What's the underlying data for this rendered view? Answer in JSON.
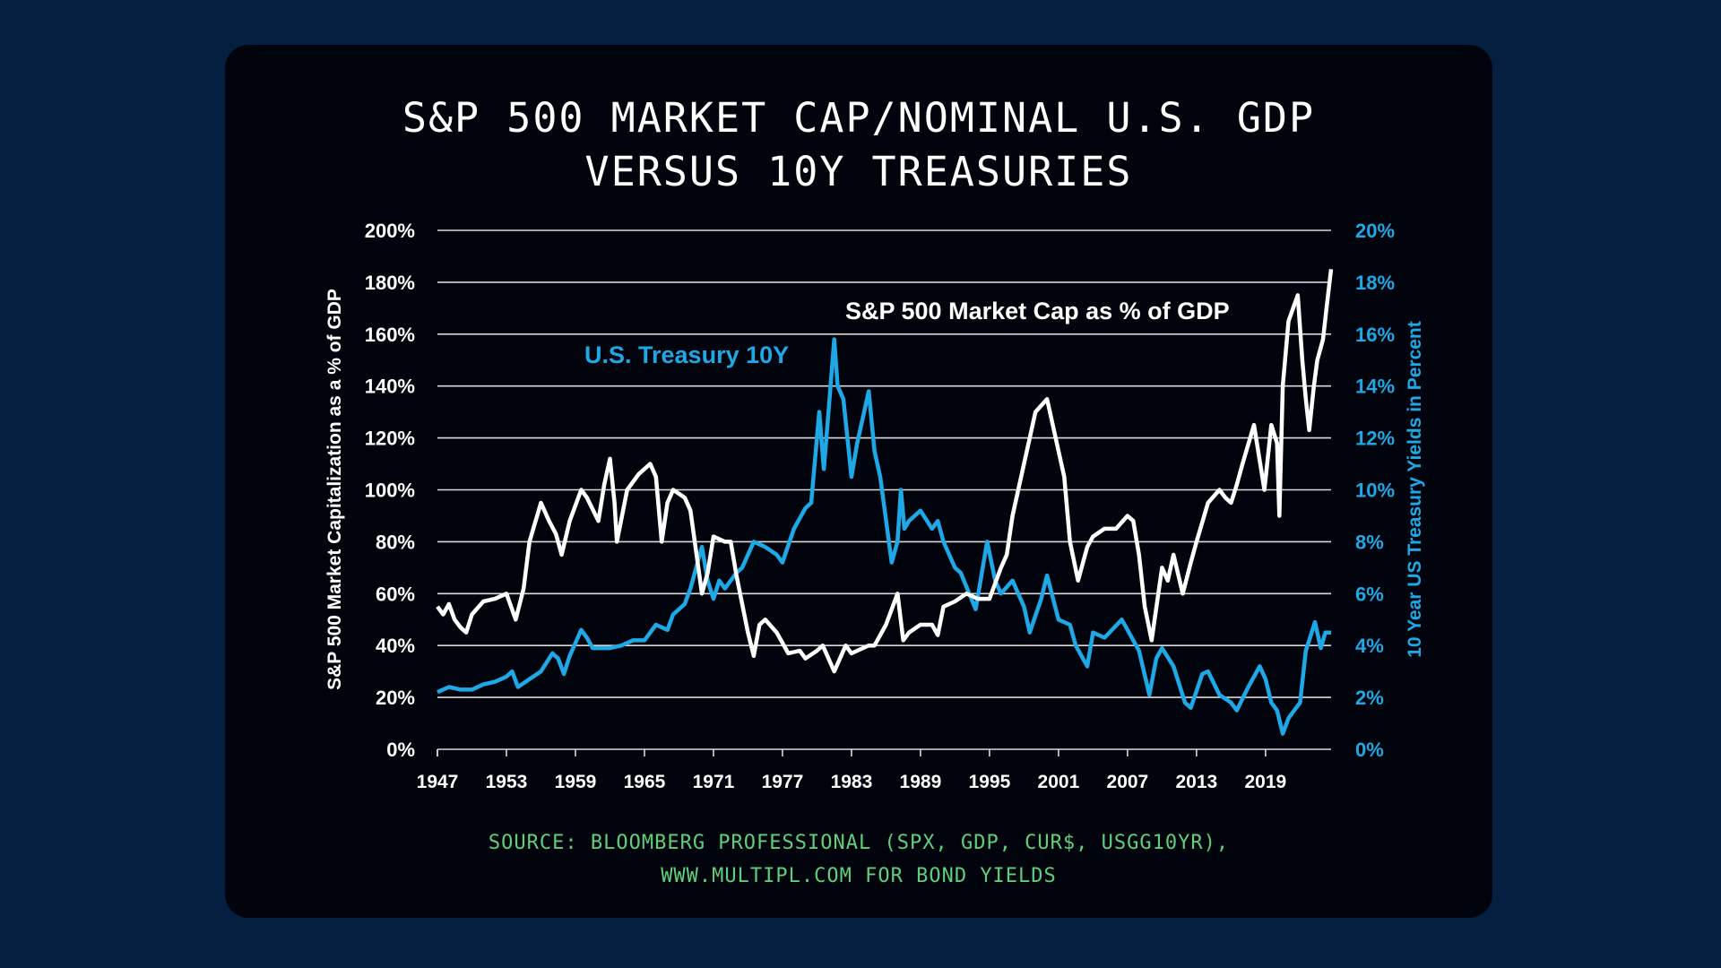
{
  "title_lines": [
    "S&P 500 MARKET CAP/NOMINAL U.S. GDP",
    "VERSUS 10Y TREASURIES"
  ],
  "source_lines": [
    "SOURCE: BLOOMBERG PROFESSIONAL (SPX, GDP, CUR$, USGG10YR),",
    "WWW.MULTIPL.COM FOR BOND YIELDS"
  ],
  "colors": {
    "background": "#041f40",
    "card": "#02040d",
    "market_cap_line": "#ffffff",
    "treasury_line": "#1ea8e6",
    "gridline": "#d9d9d9",
    "source_text": "#5fd07a"
  },
  "chart_data": {
    "type": "line",
    "title": "S&P 500 Market Cap/Nominal U.S. GDP versus 10Y Treasuries",
    "xlabel": "",
    "ylabel": "S&P 500 Market Capitalization as a % of GDP",
    "y2label": "10 Year US Treasury Yields in Percent",
    "xlim": [
      1947,
      2024.7
    ],
    "ylim": [
      0,
      200
    ],
    "y2lim": [
      0,
      20
    ],
    "grid": true,
    "x_ticks": [
      1947,
      1953,
      1959,
      1965,
      1971,
      1977,
      1983,
      1989,
      1995,
      2001,
      2007,
      2013,
      2019
    ],
    "x_tick_labels": [
      "1947",
      "1953",
      "1959",
      "1965",
      "1971",
      "1977",
      "1983",
      "1989",
      "1995",
      "2001",
      "2007",
      "2013",
      "2019"
    ],
    "y_ticks": [
      0,
      20,
      40,
      60,
      80,
      100,
      120,
      140,
      160,
      180,
      200
    ],
    "y_tick_labels": [
      "0%",
      "20%",
      "40%",
      "60%",
      "80%",
      "100%",
      "120%",
      "140%",
      "160%",
      "180%",
      "200%"
    ],
    "y2_ticks": [
      0,
      2,
      4,
      6,
      8,
      10,
      12,
      14,
      16,
      18,
      20
    ],
    "y2_tick_labels": [
      "0%",
      "2%",
      "4%",
      "6%",
      "8%",
      "10%",
      "12%",
      "14%",
      "16%",
      "18%",
      "20%"
    ],
    "annotations": [
      {
        "text": "S&P 500 Market Cap as % of GDP",
        "series": 0
      },
      {
        "text": "U.S. Treasury 10Y",
        "series": 1
      }
    ],
    "series": [
      {
        "name": "S&P 500 Market Cap as % of GDP",
        "axis": "left",
        "x": [
          1947,
          1947.5,
          1948,
          1948.5,
          1949,
          1949.5,
          1950,
          1951,
          1952,
          1953,
          1953.8,
          1954.5,
          1955,
          1956,
          1956.7,
          1957.3,
          1957.8,
          1958.5,
          1959.5,
          1960,
          1961,
          1961.5,
          1962,
          1962.4,
          1962.6,
          1963.5,
          1964.5,
          1965.5,
          1966,
          1966.5,
          1967,
          1967.5,
          1968.5,
          1969,
          1970,
          1970.5,
          1971,
          1972,
          1972.5,
          1973,
          1974,
          1974.5,
          1975,
          1975.5,
          1976.5,
          1977.5,
          1978.5,
          1979,
          1980,
          1980.5,
          1981.5,
          1982.5,
          1983,
          1983.5,
          1984.5,
          1985,
          1986,
          1987,
          1987.5,
          1988,
          1989,
          1990,
          1990.5,
          1991,
          1992,
          1993,
          1994,
          1995,
          1996,
          1996.5,
          1997,
          1998,
          1998.5,
          1999,
          2000,
          2000.5,
          2001,
          2001.5,
          2002,
          2002.7,
          2003.5,
          2004,
          2005,
          2006,
          2007,
          2007.5,
          2008,
          2008.5,
          2009.1,
          2010,
          2010.5,
          2011,
          2011.8,
          2012.5,
          2013,
          2014,
          2015,
          2015.5,
          2016,
          2016.5,
          2017,
          2018,
          2018.9,
          2019.5,
          2020,
          2020.2,
          2020.5,
          2021,
          2021.8,
          2022.2,
          2022.5,
          2022.8,
          2023.2,
          2023.5,
          2024,
          2024.3,
          2024.7
        ],
        "values": [
          55,
          52,
          56,
          50,
          47,
          45,
          52,
          57,
          58,
          60,
          50,
          62,
          80,
          95,
          88,
          83,
          75,
          88,
          100,
          97,
          88,
          102,
          112,
          95,
          80,
          100,
          106,
          110,
          105,
          80,
          95,
          100,
          97,
          92,
          60,
          68,
          82,
          80,
          80,
          67,
          45,
          36,
          48,
          50,
          45,
          37,
          38,
          35,
          38,
          40,
          30,
          40,
          37,
          38,
          40,
          40,
          48,
          60,
          42,
          45,
          48,
          48,
          44,
          55,
          57,
          60,
          58,
          58,
          70,
          75,
          90,
          110,
          120,
          130,
          135,
          125,
          115,
          105,
          80,
          65,
          78,
          82,
          85,
          85,
          90,
          88,
          75,
          55,
          42,
          70,
          65,
          75,
          60,
          72,
          80,
          95,
          100,
          97,
          95,
          102,
          110,
          125,
          100,
          125,
          118,
          90,
          140,
          165,
          175,
          150,
          135,
          123,
          140,
          150,
          158,
          170,
          185
        ]
      },
      {
        "name": "U.S. Treasury 10Y",
        "axis": "right",
        "x": [
          1947,
          1948,
          1949,
          1950,
          1951,
          1952,
          1953,
          1953.5,
          1954,
          1955,
          1956,
          1957,
          1957.5,
          1958,
          1958.5,
          1959.5,
          1960,
          1960.5,
          1961,
          1962,
          1963,
          1964,
          1965,
          1966,
          1967,
          1967.5,
          1968.5,
          1969,
          1970,
          1970.5,
          1971,
          1971.5,
          1972,
          1973,
          1973.5,
          1974.5,
          1975.5,
          1976.5,
          1977,
          1978,
          1979,
          1979.5,
          1980,
          1980.2,
          1980.6,
          1981,
          1981.5,
          1981.8,
          1982.3,
          1983,
          1983.5,
          1984.5,
          1985,
          1985.5,
          1986.5,
          1987,
          1987.3,
          1987.6,
          1988,
          1989,
          1990,
          1990.5,
          1991,
          1992,
          1992.5,
          1993.8,
          1994.8,
          1995.5,
          1996,
          1997,
          1998,
          1998.5,
          1999.5,
          2000,
          2001,
          2002,
          2002.5,
          2003.5,
          2004,
          2005,
          2006.5,
          2007,
          2008,
          2008.9,
          2009.5,
          2010,
          2011,
          2012,
          2012.5,
          2013.5,
          2014,
          2015,
          2016,
          2016.5,
          2017.5,
          2018.5,
          2019,
          2019.5,
          2020,
          2020.5,
          2021,
          2021.5,
          2022,
          2022.5,
          2022.8,
          2023.3,
          2023.8,
          2024.2,
          2024.7
        ],
        "values": [
          2.2,
          2.4,
          2.3,
          2.3,
          2.5,
          2.6,
          2.8,
          3.0,
          2.4,
          2.7,
          3.0,
          3.7,
          3.5,
          2.9,
          3.6,
          4.6,
          4.3,
          3.9,
          3.9,
          3.9,
          4.0,
          4.2,
          4.2,
          4.8,
          4.6,
          5.2,
          5.6,
          6.2,
          7.8,
          6.5,
          5.8,
          6.5,
          6.2,
          6.8,
          7.0,
          8.0,
          7.8,
          7.5,
          7.2,
          8.5,
          9.3,
          9.5,
          12.0,
          13.0,
          10.8,
          13.0,
          15.8,
          14.0,
          13.5,
          10.5,
          11.8,
          13.8,
          11.5,
          10.5,
          7.2,
          8.0,
          10.0,
          8.5,
          8.8,
          9.2,
          8.5,
          8.8,
          8.0,
          7.0,
          6.8,
          5.4,
          8.0,
          6.5,
          6.0,
          6.5,
          5.5,
          4.5,
          5.8,
          6.7,
          5.0,
          4.8,
          4.0,
          3.2,
          4.5,
          4.3,
          5.0,
          4.6,
          3.8,
          2.1,
          3.5,
          3.9,
          3.2,
          1.8,
          1.6,
          2.9,
          3.0,
          2.1,
          1.8,
          1.5,
          2.4,
          3.2,
          2.7,
          1.8,
          1.5,
          0.6,
          1.2,
          1.5,
          1.8,
          3.8,
          4.2,
          4.9,
          3.9,
          4.5,
          4.5
        ]
      }
    ]
  }
}
